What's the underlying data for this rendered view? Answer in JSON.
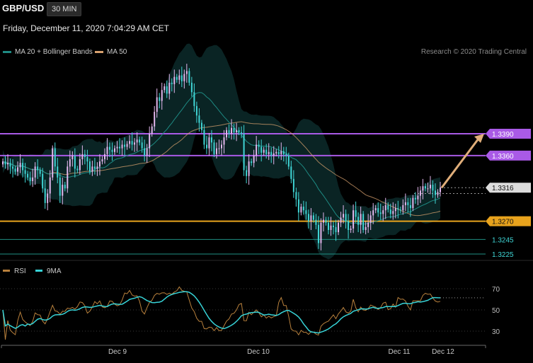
{
  "header": {
    "symbol": "GBP/USD",
    "timeframe": "30 MIN",
    "datetime": "Friday, December 11, 2020 7:04:29 AM CET"
  },
  "legend": {
    "ma20_label": "MA 20 + Bollinger Bands",
    "ma50_label": "MA 50",
    "credit": "Research © 2020 Trading Central"
  },
  "colors": {
    "background": "#000000",
    "bull_candle": "#e4b8ef",
    "bear_candle": "#40d6d6",
    "resistance": "#a95ae6",
    "support_key": "#e8a31d",
    "support_teal": "#1f8f83",
    "ma20": "#1e8a83",
    "ma50": "#d7a06e",
    "bands_fill": "#0b2626",
    "arrow": "#e0ae7a",
    "rsi": "#b8803c",
    "rsi_ma": "#37d3d7"
  },
  "chart_data": [
    {
      "type": "candlestick",
      "title": "GBP/USD",
      "interval": "30 MIN",
      "x_tick_labels": [
        "Dec 9",
        "Dec 10",
        "Dec 11",
        "Dec 12"
      ],
      "ylim": [
        1.3205,
        1.3465
      ],
      "price_levels": [
        {
          "value": 1.339,
          "label": "1.3390",
          "kind": "resistance"
        },
        {
          "value": 1.336,
          "label": "1.3360",
          "kind": "resistance"
        },
        {
          "value": 1.3316,
          "label": "1.3316",
          "kind": "last-price"
        },
        {
          "value": 1.327,
          "label": "1.3270",
          "kind": "key-support"
        },
        {
          "value": 1.3245,
          "label": "1.3245",
          "kind": "support"
        },
        {
          "value": 1.3225,
          "label": "1.3225",
          "kind": "support"
        }
      ],
      "close": [
        1.3352,
        1.3348,
        1.335,
        1.3345,
        1.3342,
        1.3338,
        1.3344,
        1.335,
        1.334,
        1.3335,
        1.333,
        1.3325,
        1.333,
        1.3345,
        1.334,
        1.3335,
        1.3315,
        1.3295,
        1.3308,
        1.333,
        1.337,
        1.3345,
        1.333,
        1.3305,
        1.332,
        1.3315,
        1.3345,
        1.3355,
        1.336,
        1.3342,
        1.334,
        1.3355,
        1.3362,
        1.3358,
        1.3352,
        1.3338,
        1.3345,
        1.3342,
        1.3345,
        1.3352,
        1.3355,
        1.3362,
        1.3372,
        1.3368,
        1.3365,
        1.337,
        1.3372,
        1.337,
        1.3375,
        1.3372,
        1.3376,
        1.338,
        1.3375,
        1.3378,
        1.3382,
        1.3378,
        1.337,
        1.336,
        1.337,
        1.339,
        1.34,
        1.342,
        1.344,
        1.3435,
        1.345,
        1.3455,
        1.3445,
        1.346,
        1.3458,
        1.3468,
        1.3464,
        1.347,
        1.3462,
        1.3472,
        1.3476,
        1.346,
        1.3447,
        1.3428,
        1.3415,
        1.3405,
        1.3395,
        1.3375,
        1.337,
        1.3385,
        1.3378,
        1.3362,
        1.337,
        1.337,
        1.3375,
        1.3385,
        1.3395,
        1.339,
        1.3398,
        1.3392,
        1.3395,
        1.3392,
        1.339,
        1.334,
        1.3332,
        1.3352,
        1.335,
        1.336,
        1.3375,
        1.3372,
        1.3364,
        1.3368,
        1.3362,
        1.3365,
        1.336,
        1.3363,
        1.3365,
        1.3362,
        1.3366,
        1.3362,
        1.336,
        1.3345,
        1.3328,
        1.331,
        1.33,
        1.3282,
        1.329,
        1.3285,
        1.328,
        1.327,
        1.3278,
        1.3272,
        1.3265,
        1.324,
        1.3268,
        1.3272,
        1.3268,
        1.3258,
        1.3264,
        1.3262,
        1.3255,
        1.3268,
        1.3275,
        1.328,
        1.327,
        1.3258,
        1.326,
        1.3285,
        1.3276,
        1.3265,
        1.328,
        1.3258,
        1.3262,
        1.3268,
        1.3278,
        1.3285,
        1.3288,
        1.3282,
        1.328,
        1.3285,
        1.3292,
        1.3286,
        1.328,
        1.3284,
        1.3288,
        1.3286,
        1.3285,
        1.3292,
        1.3296,
        1.3292,
        1.3288,
        1.3302,
        1.33,
        1.3305,
        1.3312,
        1.3318,
        1.3315,
        1.3315,
        1.332,
        1.3312,
        1.3306,
        1.331,
        1.3316
      ],
      "trend_arrow": {
        "from": 1.3316,
        "to": 1.339
      }
    },
    {
      "type": "line",
      "title": "RSI",
      "ylim": [
        25,
        80
      ],
      "y_ticks": [
        70,
        50,
        30
      ],
      "series": [
        {
          "name": "RSI"
        },
        {
          "name": "9MA"
        }
      ]
    }
  ]
}
